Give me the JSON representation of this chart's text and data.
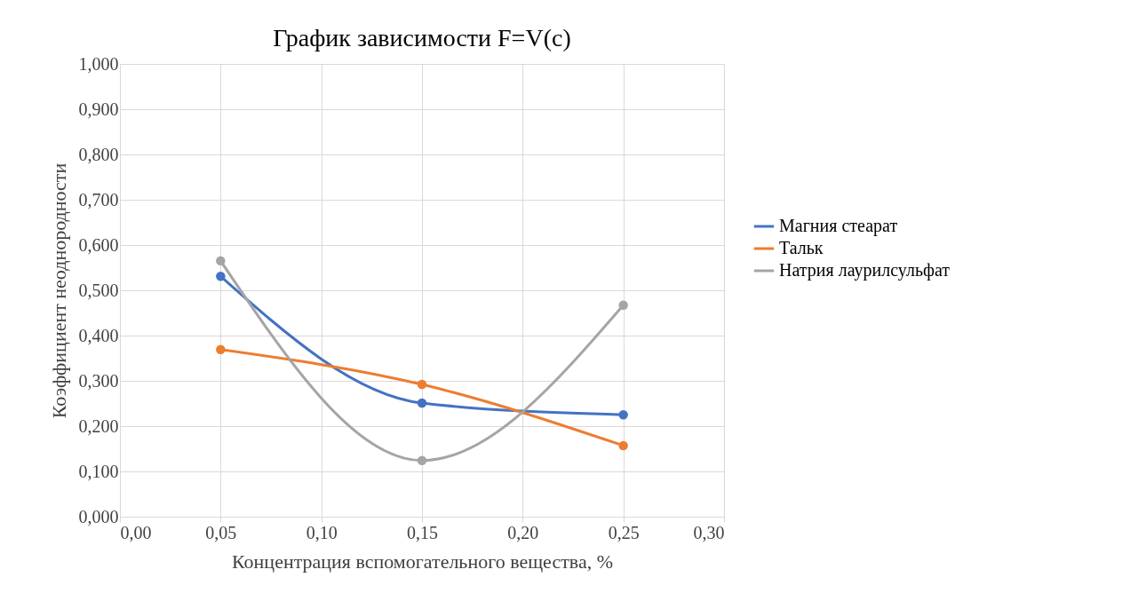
{
  "chart_data": {
    "type": "line",
    "title": "График зависимости F=V(c)",
    "xlabel": "Концентрация вспомогательного вещества, %",
    "ylabel": "Коэффициент неоднородности",
    "x": [
      0.05,
      0.15,
      0.25
    ],
    "series": [
      {
        "name": "Магния стеарат",
        "color": "#4472c4",
        "values": [
          0.531,
          0.251,
          0.225
        ]
      },
      {
        "name": "Тальк",
        "color": "#ed7d31",
        "values": [
          0.369,
          0.292,
          0.157
        ]
      },
      {
        "name": "Натрия лаурилсульфат",
        "color": "#a5a5a5",
        "values": [
          0.565,
          0.124,
          0.467
        ]
      }
    ],
    "xlim": [
      0,
      0.3
    ],
    "xticks": [
      {
        "value": 0,
        "label": "0,00"
      },
      {
        "value": 0.05,
        "label": "0,05"
      },
      {
        "value": 0.1,
        "label": "0,10"
      },
      {
        "value": 0.15,
        "label": "0,15"
      },
      {
        "value": 0.2,
        "label": "0,20"
      },
      {
        "value": 0.25,
        "label": "0,25"
      },
      {
        "value": 0.3,
        "label": "0,30"
      }
    ],
    "ylim": [
      0,
      1
    ],
    "yticks": [
      {
        "value": 0,
        "label": "0,000"
      },
      {
        "value": 0.1,
        "label": "0,100"
      },
      {
        "value": 0.2,
        "label": "0,200"
      },
      {
        "value": 0.3,
        "label": "0,300"
      },
      {
        "value": 0.4,
        "label": "0,400"
      },
      {
        "value": 0.5,
        "label": "0,500"
      },
      {
        "value": 0.6,
        "label": "0,600"
      },
      {
        "value": 0.7,
        "label": "0,700"
      },
      {
        "value": 0.8,
        "label": "0,800"
      },
      {
        "value": 0.9,
        "label": "0,900"
      },
      {
        "value": 1,
        "label": "1,000"
      }
    ],
    "grid": true,
    "legend": "right",
    "marker": "circle",
    "line_style": "solid"
  }
}
